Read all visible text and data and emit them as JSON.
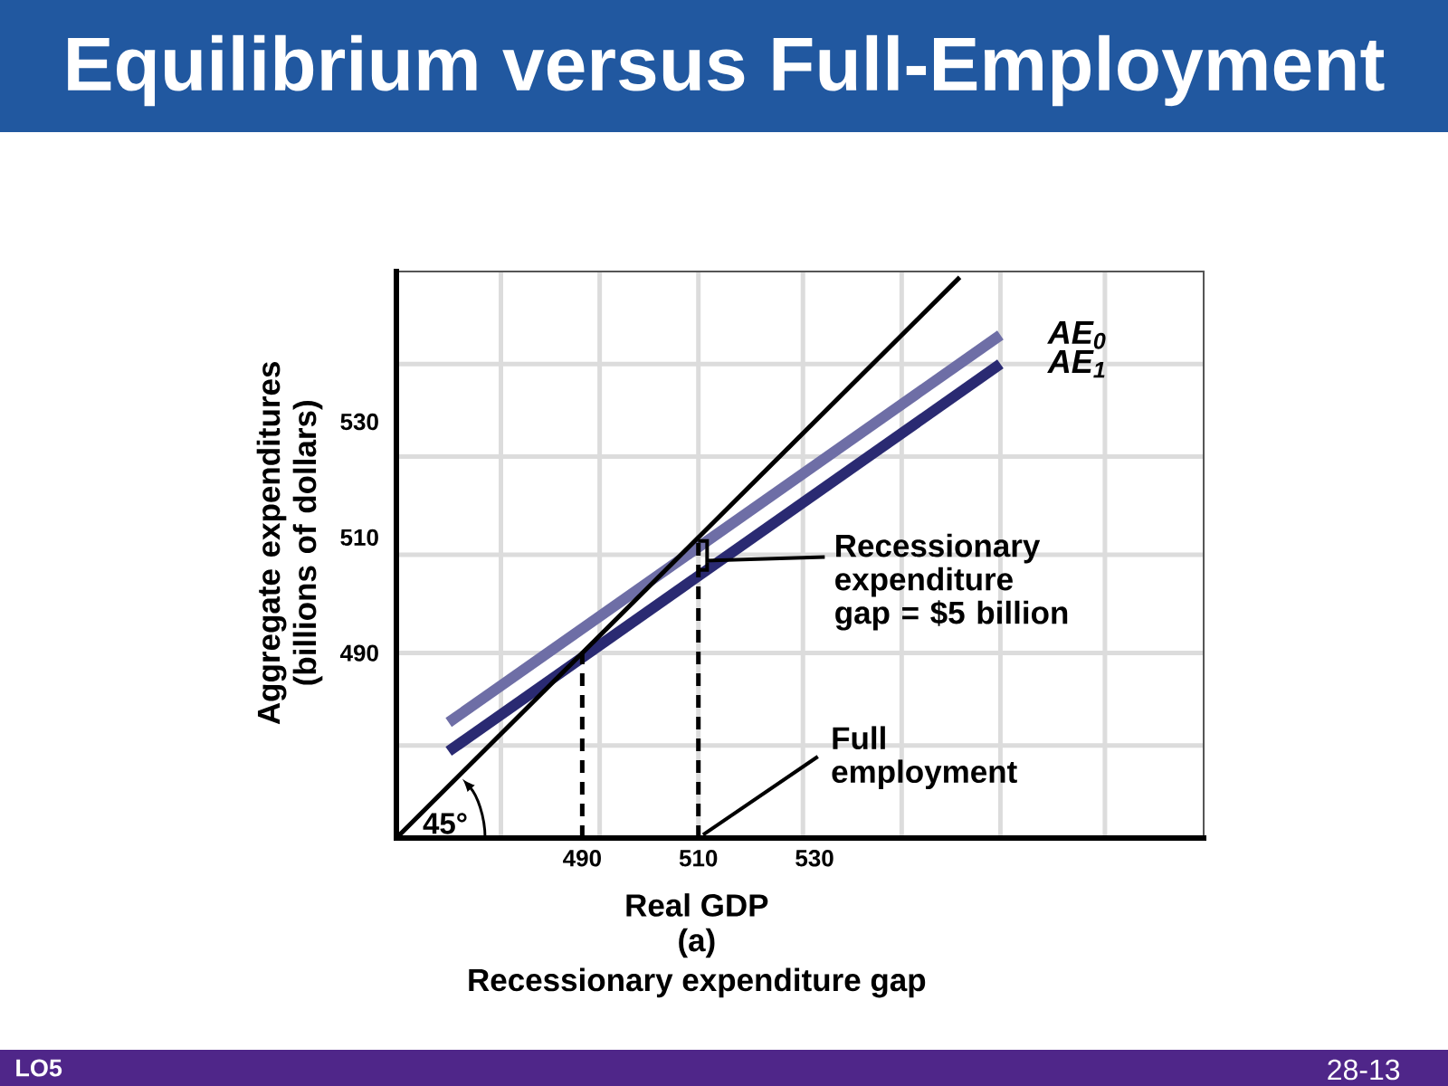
{
  "chart_data": {
    "type": "line",
    "title": "Equilibrium versus Full-Employment",
    "xlabel": "Real GDP",
    "ylabel": "Aggregate expenditures (billions of dollars)",
    "xlim": [
      458,
      597
    ],
    "ylim": [
      458,
      556
    ],
    "xticks": [
      {
        "value": 476,
        "label": null
      },
      490,
      {
        "value": 493,
        "label": null
      },
      510,
      {
        "value": 510,
        "label": null
      },
      {
        "value": 528,
        "label": null
      },
      530,
      {
        "value": 545,
        "label": null
      },
      {
        "value": 562,
        "label": null
      },
      {
        "value": 580,
        "label": null
      }
    ],
    "yticks": [
      {
        "value": 474,
        "label": null
      },
      490,
      {
        "value": 490,
        "label": null
      },
      {
        "value": 507,
        "label": null
      },
      510,
      {
        "value": 524,
        "label": null
      },
      530,
      {
        "value": 540,
        "label": null
      }
    ],
    "grid": true,
    "series": [
      {
        "name": "AE$_{0}$",
        "color": "#6e6ea6",
        "x": [
          467,
          562
        ],
        "values": [
          478,
          545
        ]
      },
      {
        "name": "AE$_{1}$",
        "color": "#2a2a72",
        "x": [
          467,
          562
        ],
        "values": [
          473,
          540
        ]
      },
      {
        "color": "#000000",
        "x": [
          458,
          555
        ],
        "values": [
          458,
          555
        ]
      },
      {
        "color": "#000000",
        "line_style": "dashed",
        "x": [
          490,
          490
        ],
        "values": [
          458,
          490
        ]
      },
      {
        "color": "#000000",
        "line_style": "dashed",
        "x": [
          510,
          510
        ],
        "values": [
          458,
          510
        ]
      }
    ],
    "annotations": [
      {
        "text": "Recessionary expenditure gap = $5 billion",
        "x": 511.5,
        "y": 506
      },
      {
        "text": "Full employment",
        "x": 510,
        "y": 458
      },
      "45°",
      "(a)",
      "Recessionary expenditure gap",
      "LO5",
      "28-13"
    ]
  }
}
